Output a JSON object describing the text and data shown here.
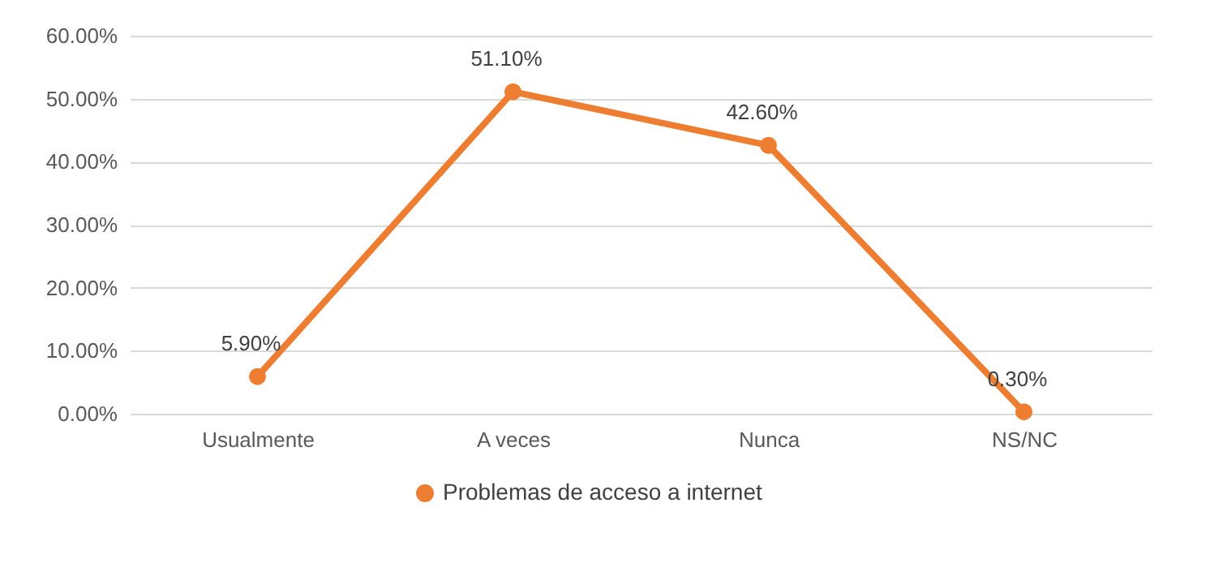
{
  "chart_data": {
    "type": "line",
    "categories": [
      "Usualmente",
      "A veces",
      "Nunca",
      "NS/NC"
    ],
    "series": [
      {
        "name": "Problemas de acceso a internet",
        "color": "#ed7d31",
        "values": [
          5.9,
          51.1,
          42.6,
          0.3
        ],
        "value_labels": [
          "5.90%",
          "51.10%",
          "42.60%",
          "0.30%"
        ]
      }
    ],
    "ylim": [
      0,
      60
    ],
    "yticks": [
      {
        "value": 0,
        "label": "0.00%"
      },
      {
        "value": 10,
        "label": "10.00%"
      },
      {
        "value": 20,
        "label": "20.00%"
      },
      {
        "value": 30,
        "label": "30.00%"
      },
      {
        "value": 40,
        "label": "40.00%"
      },
      {
        "value": 50,
        "label": "50.00%"
      },
      {
        "value": 60,
        "label": "60.00%"
      }
    ],
    "grid": "y",
    "legend": "bottom",
    "marker": "circle",
    "line_style": "solid"
  }
}
